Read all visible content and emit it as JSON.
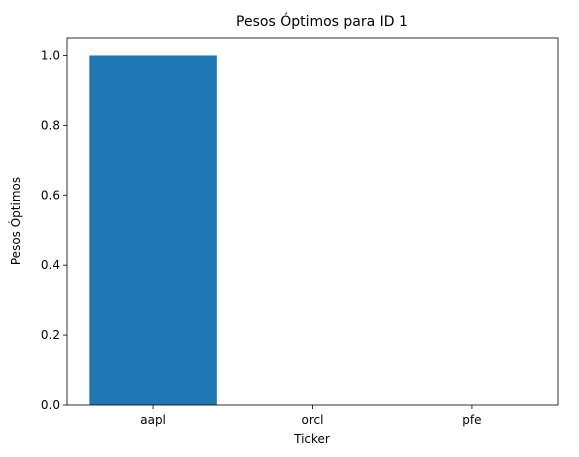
{
  "chart_data": {
    "type": "bar",
    "title": "Pesos Óptimos para ID 1",
    "xlabel": "Ticker",
    "ylabel": "Pesos Óptimos",
    "categories": [
      "aapl",
      "orcl",
      "pfe"
    ],
    "values": [
      1.0,
      0.0,
      0.0
    ],
    "ylim": [
      0,
      1.05
    ],
    "yticks": [
      "0.0",
      "0.2",
      "0.4",
      "0.6",
      "0.8",
      "1.0"
    ],
    "bar_color": "#1f77b4",
    "grid": false
  }
}
